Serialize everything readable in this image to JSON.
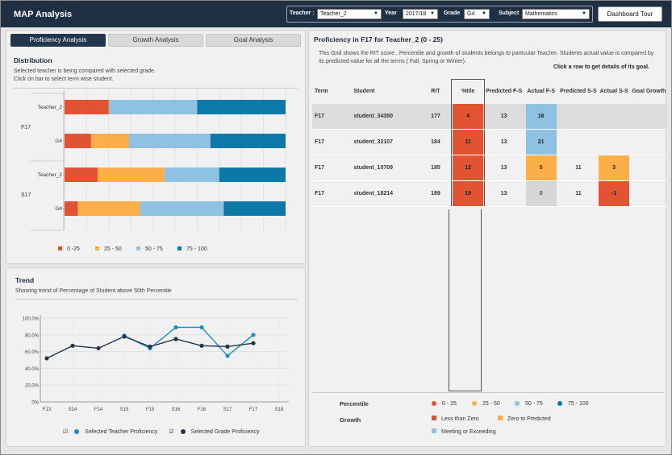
{
  "app_title": "MAP Analysis",
  "filters": {
    "teacher_label": "Teacher :",
    "teacher_value": "Teacher_2",
    "year_label": "Year",
    "year_value": "2017/18",
    "grade_label": "Grade",
    "grade_value": "G4",
    "subject_label": "Subject",
    "subject_value": "Mathematics"
  },
  "dashboard_tour": "Dashboard Tour",
  "tabs": [
    "Proficiency Analysis",
    "Growth Analysis",
    "Goal Analysis"
  ],
  "distribution": {
    "title": "Distribution",
    "sub1": "Selected teacher is being compared with selected grade.",
    "sub2": "Click on bar to select term wise student."
  },
  "trend": {
    "title": "Trend",
    "sub": "Showing trend of Percentage of Student above 50th Percentile",
    "legend_teacher": "Selected Teacher Proficiency",
    "legend_grade": "Selected Grade Proficiency"
  },
  "grid": {
    "title": "Proficiency in F17 for Teacher_2 (0 - 25)",
    "desc": "This Grid shows the RIT score , Percentile and growth of students belongs to particular Teacher. Students actual value is compared by its predicted value for all the terms ( Fall, Spring or Winter).",
    "hint": "Click a row to get details of its goal.",
    "headers": [
      "Term",
      "Student",
      "RIT",
      "%tile",
      "Predicted F-S",
      "Actual F-S",
      "Predicted S-S",
      "Actual S-S",
      "Goal Growth"
    ],
    "rows": [
      {
        "term": "F17",
        "student": "student_34350",
        "rit": "177",
        "pct": "4",
        "pred_fs": "13",
        "act_fs": "16",
        "act_fs_class": "blue",
        "pred_ss": "",
        "act_ss": "",
        "act_ss_class": "",
        "goal": ""
      },
      {
        "term": "F17",
        "student": "student_32107",
        "rit": "184",
        "pct": "11",
        "pred_fs": "13",
        "act_fs": "21",
        "act_fs_class": "blue",
        "pred_ss": "",
        "act_ss": "",
        "act_ss_class": "",
        "goal": ""
      },
      {
        "term": "F17",
        "student": "student_10709",
        "rit": "185",
        "pct": "12",
        "pred_fs": "13",
        "act_fs": "5",
        "act_fs_class": "orange",
        "pred_ss": "11",
        "act_ss": "3",
        "act_ss_class": "orange",
        "goal": ""
      },
      {
        "term": "F17",
        "student": "student_18214",
        "rit": "189",
        "pct": "19",
        "pred_fs": "13",
        "act_fs": "0",
        "act_fs_class": "grey",
        "pred_ss": "11",
        "act_ss": "-1",
        "act_ss_class": "red",
        "goal": ""
      }
    ],
    "legend": {
      "percentile_label": "Percentile",
      "growth_label": "Growth",
      "percentile_items": [
        "0 - 25",
        "25 - 50",
        "50 - 75",
        "75 - 100"
      ],
      "growth_items": [
        "Less than Zero",
        "Zero to Predicted",
        "Meeting or Exceeding"
      ]
    }
  },
  "colors": {
    "q1": "#e05433",
    "q2": "#fcaf49",
    "q3": "#8ec1e2",
    "q4": "#0c79a8",
    "teacher_line": "#1a8ec2",
    "grade_line": "#243447"
  },
  "chart_data": [
    {
      "type": "bar",
      "orientation": "horizontal",
      "stacked": true,
      "title": "Distribution",
      "groups": [
        "F17",
        "S17"
      ],
      "categories": [
        "Teacher_2",
        "G4",
        "Teacher_2",
        "G4"
      ],
      "series": [
        {
          "name": "0 -25",
          "values": [
            20,
            12,
            15,
            6
          ]
        },
        {
          "name": "25 - 50",
          "values": [
            0,
            17,
            30,
            28
          ]
        },
        {
          "name": "50 - 75",
          "values": [
            40,
            37,
            25,
            38
          ]
        },
        {
          "name": "75 - 100",
          "values": [
            40,
            34,
            30,
            28
          ]
        }
      ],
      "legend": "bottom"
    },
    {
      "type": "line",
      "title": "Trend",
      "x": [
        "F13",
        "S14",
        "F14",
        "S15",
        "F15",
        "S16",
        "F16",
        "S17",
        "F17",
        "S18"
      ],
      "series": [
        {
          "name": "Selected Teacher Proficiency",
          "values": [
            null,
            null,
            null,
            79,
            64,
            89,
            89,
            55,
            80,
            null
          ]
        },
        {
          "name": "Selected Grade Proficiency",
          "values": [
            52,
            67,
            64,
            78,
            66,
            75,
            67,
            66,
            70,
            null
          ]
        }
      ],
      "ylim": [
        0,
        100
      ],
      "yticks": [
        "0%",
        "20.0%",
        "40.0%",
        "60.0%",
        "80.0%",
        "100.0%"
      ],
      "legend": "bottom"
    }
  ]
}
